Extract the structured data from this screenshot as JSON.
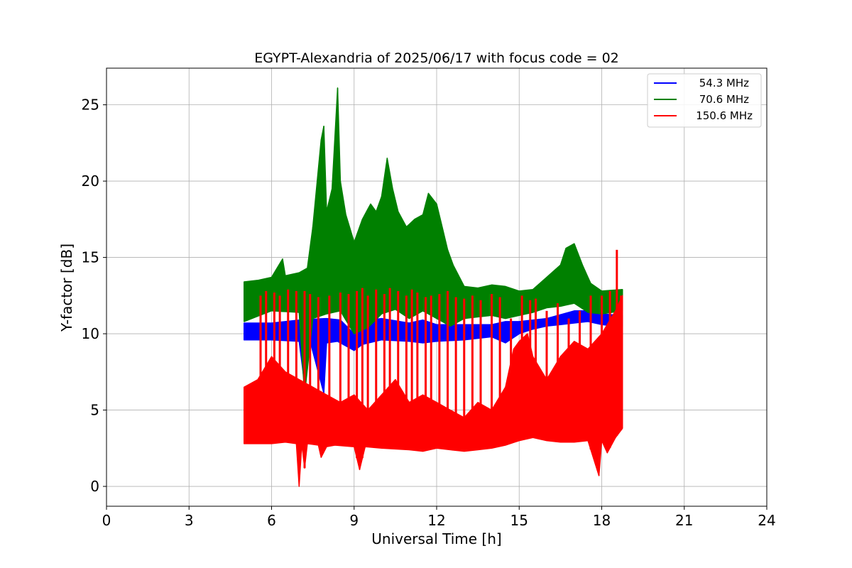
{
  "chart_data": {
    "type": "line",
    "title": "EGYPT-Alexandria of 2025/06/17 with focus code = 02",
    "xlabel": "Universal Time [h]",
    "ylabel": "Y-factor [dB]",
    "xlim": [
      0,
      24
    ],
    "ylim": [
      -1.3,
      27.4
    ],
    "xticks": [
      0,
      3,
      6,
      9,
      12,
      15,
      18,
      21,
      24
    ],
    "yticks": [
      0,
      5,
      10,
      15,
      20,
      25
    ],
    "grid": true,
    "legend_position": "top-right",
    "series": [
      {
        "name": "54.3 MHz",
        "color": "#0000ff",
        "min": [
          [
            5.0,
            9.6
          ],
          [
            6.0,
            9.6
          ],
          [
            7.0,
            9.5
          ],
          [
            7.2,
            6.7
          ],
          [
            7.4,
            9.5
          ],
          [
            7.9,
            6.1
          ],
          [
            8.0,
            9.4
          ],
          [
            8.4,
            9.5
          ],
          [
            9.0,
            8.9
          ],
          [
            9.3,
            9.3
          ],
          [
            10.0,
            9.6
          ],
          [
            11.0,
            9.5
          ],
          [
            11.5,
            9.4
          ],
          [
            12.0,
            9.5
          ],
          [
            13.0,
            9.6
          ],
          [
            14.0,
            9.8
          ],
          [
            14.5,
            9.4
          ],
          [
            15.0,
            10.0
          ],
          [
            15.5,
            10.3
          ],
          [
            16.0,
            10.5
          ],
          [
            16.5,
            10.6
          ],
          [
            17.0,
            10.7
          ],
          [
            17.5,
            10.8
          ],
          [
            18.0,
            10.6
          ],
          [
            18.5,
            10.5
          ],
          [
            18.75,
            10.5
          ]
        ],
        "max": [
          [
            5.0,
            10.7
          ],
          [
            6.0,
            10.7
          ],
          [
            7.0,
            10.9
          ],
          [
            8.0,
            11.0
          ],
          [
            8.5,
            10.9
          ],
          [
            9.0,
            10.0
          ],
          [
            9.5,
            10.9
          ],
          [
            10.0,
            11.0
          ],
          [
            11.0,
            10.7
          ],
          [
            11.5,
            10.9
          ],
          [
            12.0,
            10.6
          ],
          [
            13.0,
            10.6
          ],
          [
            14.0,
            10.6
          ],
          [
            14.5,
            10.8
          ],
          [
            15.0,
            10.8
          ],
          [
            16.0,
            11.0
          ],
          [
            17.0,
            11.5
          ],
          [
            17.5,
            11.5
          ],
          [
            18.0,
            11.3
          ],
          [
            18.75,
            11.2
          ]
        ]
      },
      {
        "name": "70.6 MHz",
        "color": "#008000",
        "min": [
          [
            5.0,
            10.8
          ],
          [
            6.0,
            11.5
          ],
          [
            7.0,
            11.4
          ],
          [
            7.2,
            6.0
          ],
          [
            7.5,
            11.0
          ],
          [
            8.0,
            11.3
          ],
          [
            8.5,
            11.5
          ],
          [
            9.0,
            10.0
          ],
          [
            9.5,
            10.4
          ],
          [
            10.0,
            11.3
          ],
          [
            10.5,
            11.6
          ],
          [
            11.0,
            11.0
          ],
          [
            11.5,
            11.5
          ],
          [
            12.0,
            11.0
          ],
          [
            12.5,
            10.5
          ],
          [
            13.0,
            11.0
          ],
          [
            14.0,
            11.2
          ],
          [
            14.5,
            11.0
          ],
          [
            15.0,
            11.2
          ],
          [
            15.5,
            11.4
          ],
          [
            16.0,
            11.7
          ],
          [
            16.5,
            11.8
          ],
          [
            17.0,
            12.0
          ],
          [
            17.5,
            11.4
          ],
          [
            18.0,
            11.3
          ],
          [
            18.75,
            11.5
          ]
        ],
        "max": [
          [
            5.0,
            13.4
          ],
          [
            5.5,
            13.5
          ],
          [
            6.0,
            13.7
          ],
          [
            6.4,
            14.9
          ],
          [
            6.5,
            13.8
          ],
          [
            7.0,
            14.0
          ],
          [
            7.3,
            14.3
          ],
          [
            7.5,
            17.0
          ],
          [
            7.8,
            22.7
          ],
          [
            7.9,
            23.6
          ],
          [
            8.0,
            18.0
          ],
          [
            8.2,
            19.5
          ],
          [
            8.4,
            26.1
          ],
          [
            8.5,
            20.0
          ],
          [
            8.7,
            17.8
          ],
          [
            9.0,
            16.0
          ],
          [
            9.3,
            17.5
          ],
          [
            9.6,
            18.5
          ],
          [
            9.8,
            18.0
          ],
          [
            10.0,
            19.0
          ],
          [
            10.2,
            21.5
          ],
          [
            10.4,
            19.5
          ],
          [
            10.6,
            18.0
          ],
          [
            10.9,
            17.0
          ],
          [
            11.2,
            17.5
          ],
          [
            11.5,
            17.8
          ],
          [
            11.7,
            19.2
          ],
          [
            12.0,
            18.5
          ],
          [
            12.2,
            17.0
          ],
          [
            12.4,
            15.5
          ],
          [
            12.6,
            14.5
          ],
          [
            13.0,
            13.1
          ],
          [
            13.5,
            13.0
          ],
          [
            14.0,
            13.2
          ],
          [
            14.5,
            13.1
          ],
          [
            15.0,
            12.8
          ],
          [
            15.5,
            12.9
          ],
          [
            16.0,
            13.7
          ],
          [
            16.5,
            14.5
          ],
          [
            16.7,
            15.6
          ],
          [
            17.0,
            15.9
          ],
          [
            17.3,
            14.5
          ],
          [
            17.6,
            13.3
          ],
          [
            18.0,
            12.8
          ],
          [
            18.75,
            12.9
          ]
        ]
      },
      {
        "name": "150.6 MHz",
        "color": "#ff0000",
        "min": [
          [
            5.0,
            2.8
          ],
          [
            6.0,
            2.8
          ],
          [
            6.5,
            2.9
          ],
          [
            6.9,
            2.8
          ],
          [
            7.0,
            0.0
          ],
          [
            7.1,
            2.8
          ],
          [
            7.2,
            1.2
          ],
          [
            7.3,
            2.8
          ],
          [
            7.7,
            2.7
          ],
          [
            7.8,
            1.9
          ],
          [
            8.0,
            2.6
          ],
          [
            8.3,
            2.7
          ],
          [
            9.0,
            2.6
          ],
          [
            9.2,
            1.1
          ],
          [
            9.4,
            2.6
          ],
          [
            10.0,
            2.5
          ],
          [
            11.0,
            2.4
          ],
          [
            11.5,
            2.3
          ],
          [
            12.0,
            2.5
          ],
          [
            13.0,
            2.3
          ],
          [
            14.0,
            2.5
          ],
          [
            14.5,
            2.7
          ],
          [
            15.0,
            3.0
          ],
          [
            15.5,
            3.2
          ],
          [
            16.0,
            3.0
          ],
          [
            16.5,
            2.9
          ],
          [
            17.0,
            2.9
          ],
          [
            17.5,
            3.0
          ],
          [
            17.9,
            0.7
          ],
          [
            18.0,
            3.0
          ],
          [
            18.2,
            2.2
          ],
          [
            18.5,
            3.2
          ],
          [
            18.75,
            3.8
          ]
        ],
        "max": [
          [
            5.0,
            6.5
          ],
          [
            5.5,
            7.0
          ],
          [
            6.0,
            8.5
          ],
          [
            6.5,
            7.5
          ],
          [
            7.0,
            7.0
          ],
          [
            7.5,
            6.5
          ],
          [
            8.0,
            6.0
          ],
          [
            8.5,
            5.5
          ],
          [
            9.0,
            6.0
          ],
          [
            9.5,
            5.0
          ],
          [
            10.0,
            6.0
          ],
          [
            10.5,
            7.0
          ],
          [
            11.0,
            5.5
          ],
          [
            11.5,
            6.0
          ],
          [
            12.0,
            5.5
          ],
          [
            12.5,
            5.0
          ],
          [
            13.0,
            4.5
          ],
          [
            13.5,
            5.5
          ],
          [
            14.0,
            5.0
          ],
          [
            14.5,
            6.5
          ],
          [
            14.8,
            9.0
          ],
          [
            15.0,
            9.5
          ],
          [
            15.3,
            10.0
          ],
          [
            15.5,
            8.5
          ],
          [
            16.0,
            7.0
          ],
          [
            16.5,
            8.5
          ],
          [
            17.0,
            9.5
          ],
          [
            17.5,
            9.0
          ],
          [
            18.0,
            10.0
          ],
          [
            18.5,
            11.5
          ],
          [
            18.75,
            12.5
          ]
        ],
        "spikes": [
          [
            5.6,
            12.5
          ],
          [
            5.8,
            12.8
          ],
          [
            6.1,
            12.7
          ],
          [
            6.3,
            12.5
          ],
          [
            6.6,
            12.9
          ],
          [
            6.9,
            12.8
          ],
          [
            7.2,
            12.8
          ],
          [
            7.4,
            12.6
          ],
          [
            7.7,
            12.4
          ],
          [
            8.1,
            12.5
          ],
          [
            8.5,
            12.7
          ],
          [
            8.8,
            12.6
          ],
          [
            9.1,
            12.8
          ],
          [
            9.3,
            13.0
          ],
          [
            9.5,
            12.5
          ],
          [
            9.8,
            12.9
          ],
          [
            10.1,
            12.6
          ],
          [
            10.3,
            13.0
          ],
          [
            10.6,
            12.8
          ],
          [
            10.9,
            12.5
          ],
          [
            11.1,
            12.9
          ],
          [
            11.3,
            12.7
          ],
          [
            11.6,
            12.4
          ],
          [
            11.8,
            12.5
          ],
          [
            12.1,
            12.6
          ],
          [
            12.4,
            12.8
          ],
          [
            12.7,
            12.4
          ],
          [
            13.0,
            12.3
          ],
          [
            13.3,
            12.5
          ],
          [
            13.6,
            12.2
          ],
          [
            14.0,
            12.6
          ],
          [
            14.3,
            12.4
          ],
          [
            14.7,
            11.0
          ],
          [
            15.1,
            12.5
          ],
          [
            15.4,
            12.2
          ],
          [
            15.6,
            12.3
          ],
          [
            16.0,
            11.5
          ],
          [
            16.4,
            12.0
          ],
          [
            16.8,
            11.0
          ],
          [
            17.2,
            11.5
          ],
          [
            17.6,
            12.5
          ],
          [
            18.0,
            12.5
          ],
          [
            18.3,
            12.8
          ],
          [
            18.55,
            15.5
          ],
          [
            18.7,
            12.5
          ]
        ]
      }
    ]
  }
}
